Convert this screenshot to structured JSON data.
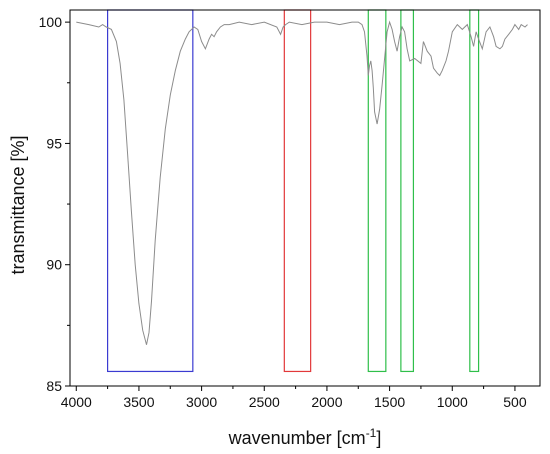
{
  "chart_data": {
    "type": "line",
    "title": "",
    "xlabel": "wavenumber [cm",
    "xlabel_sup": "-1",
    "xlabel_suffix": "]",
    "ylabel": "transmittance [%]",
    "xlim": [
      4050,
      300
    ],
    "ylim": [
      85,
      100.5
    ],
    "x_ticks": [
      4000,
      3500,
      3000,
      2500,
      2000,
      1500,
      1000,
      500
    ],
    "x_tick_labels": [
      "4000",
      "3500",
      "3000",
      "2500",
      "2000",
      "1500",
      "1000",
      "500"
    ],
    "y_ticks": [
      85,
      90,
      95,
      100
    ],
    "y_tick_labels": [
      "85",
      "90",
      "95",
      "100"
    ],
    "grid": false,
    "series": [
      {
        "color": "#8c8c8c",
        "x": [
          4000,
          3900,
          3820,
          3790,
          3760,
          3720,
          3680,
          3650,
          3620,
          3590,
          3560,
          3530,
          3500,
          3470,
          3440,
          3420,
          3400,
          3370,
          3330,
          3290,
          3250,
          3210,
          3170,
          3130,
          3100,
          3060,
          3030,
          3000,
          2970,
          2940,
          2920,
          2900,
          2880,
          2850,
          2820,
          2780,
          2700,
          2600,
          2500,
          2400,
          2370,
          2350,
          2330,
          2300,
          2200,
          2100,
          2000,
          1900,
          1800,
          1750,
          1720,
          1700,
          1680,
          1670,
          1660,
          1650,
          1640,
          1630,
          1620,
          1600,
          1580,
          1560,
          1540,
          1520,
          1500,
          1480,
          1460,
          1440,
          1420,
          1400,
          1380,
          1360,
          1340,
          1300,
          1250,
          1230,
          1200,
          1170,
          1150,
          1120,
          1100,
          1080,
          1050,
          1030,
          1000,
          960,
          920,
          880,
          850,
          830,
          810,
          790,
          760,
          730,
          700,
          670,
          650,
          620,
          600,
          580,
          550,
          520,
          500,
          470,
          450,
          420,
          400
        ],
        "y": [
          100.0,
          99.9,
          99.8,
          99.9,
          99.8,
          99.7,
          99.2,
          98.3,
          96.8,
          94.5,
          92.2,
          90.0,
          88.4,
          87.3,
          86.7,
          87.2,
          88.5,
          91.0,
          93.6,
          95.6,
          97.0,
          98.0,
          98.8,
          99.3,
          99.6,
          99.8,
          99.7,
          99.2,
          98.9,
          99.3,
          99.5,
          99.4,
          99.6,
          99.8,
          99.9,
          99.9,
          100.0,
          99.9,
          100.0,
          99.8,
          99.5,
          99.8,
          99.9,
          100.0,
          99.9,
          100.0,
          100.0,
          99.9,
          100.0,
          100.0,
          99.9,
          99.6,
          98.6,
          97.8,
          98.2,
          98.4,
          98.0,
          97.3,
          96.3,
          95.8,
          96.4,
          97.4,
          98.5,
          99.6,
          100.0,
          99.7,
          99.2,
          98.8,
          99.4,
          99.8,
          99.6,
          98.9,
          98.4,
          98.5,
          98.3,
          99.2,
          98.8,
          98.6,
          98.1,
          97.9,
          97.8,
          98.0,
          98.4,
          98.8,
          99.6,
          99.9,
          99.7,
          99.9,
          99.4,
          99.0,
          99.6,
          99.3,
          98.9,
          99.6,
          99.8,
          99.4,
          99.0,
          98.9,
          99.0,
          99.3,
          99.5,
          99.7,
          99.9,
          99.7,
          99.9,
          99.8,
          99.9
        ]
      }
    ],
    "highlight_boxes": [
      {
        "color": "#3b3bd1",
        "x_range": [
          3750,
          3070
        ],
        "y_range": [
          85.6,
          100.5
        ]
      },
      {
        "color": "#e2383a",
        "x_range": [
          2340,
          2130
        ],
        "y_range": [
          85.6,
          100.5
        ]
      },
      {
        "color": "#2fbf4a",
        "x_range": [
          1670,
          1530
        ],
        "y_range": [
          85.6,
          100.5
        ]
      },
      {
        "color": "#2fbf4a",
        "x_range": [
          1410,
          1310
        ],
        "y_range": [
          85.6,
          100.5
        ]
      },
      {
        "color": "#2fbf4a",
        "x_range": [
          860,
          790
        ],
        "y_range": [
          85.6,
          100.5
        ]
      }
    ]
  }
}
